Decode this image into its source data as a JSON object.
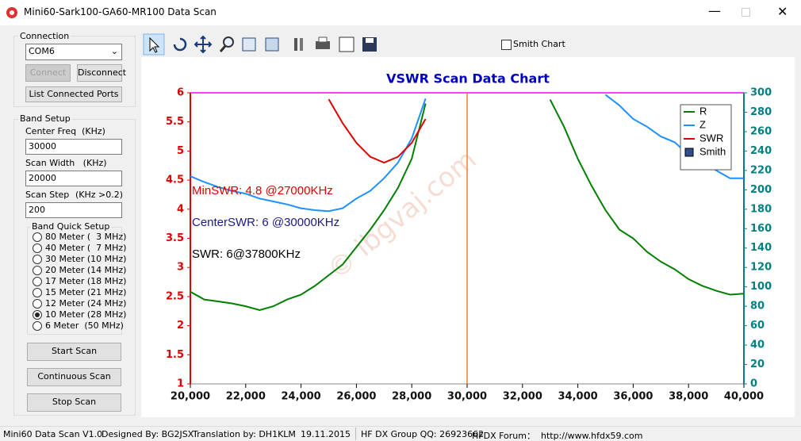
{
  "window": {
    "title": "Mini60-Sark100-GA60-MR100 Data Scan"
  },
  "connection": {
    "label": "Connection",
    "port": "COM6",
    "connect": "Connect",
    "disconnect": "Disconnect",
    "list_ports": "List Connected Ports"
  },
  "band_setup": {
    "label": "Band Setup",
    "center_freq_label": "Center Freq  (KHz)",
    "center_freq": "30000",
    "scan_width_label": "Scan Width   (KHz)",
    "scan_width": "20000",
    "scan_step_label": "Scan Step",
    "scan_step_hint": "(KHz >0.2)",
    "scan_step": "200",
    "quick_label": "Band Quick Setup",
    "bands": [
      {
        "label": "80 Meter (  3 MHz)",
        "checked": false
      },
      {
        "label": "40 Meter (  7 MHz)",
        "checked": false
      },
      {
        "label": "30 Meter (10 MHz)",
        "checked": false
      },
      {
        "label": "20 Meter (14 MHz)",
        "checked": false
      },
      {
        "label": "17 Meter (18 MHz)",
        "checked": false
      },
      {
        "label": "15 Meter (21 MHz)",
        "checked": false
      },
      {
        "label": "12 Meter (24 MHz)",
        "checked": false
      },
      {
        "label": "10 Meter (28 MHz)",
        "checked": true
      },
      {
        "label": "6 Meter  (50 MHz)",
        "checked": false
      }
    ],
    "start": "Start Scan",
    "continuous": "Continuous Scan",
    "stop": "Stop Scan"
  },
  "toolbar": {
    "smith_chart": "Smith Chart"
  },
  "chart_data": {
    "type": "line",
    "title": "VSWR Scan Data Chart",
    "x": [
      20000,
      20500,
      21000,
      21500,
      22000,
      22500,
      23000,
      23500,
      24000,
      24500,
      25000,
      25500,
      26000,
      26500,
      27000,
      27500,
      28000,
      28500,
      29000,
      29500,
      30000,
      30500,
      31000,
      31500,
      32000,
      32500,
      33000,
      33500,
      34000,
      34500,
      35000,
      35500,
      36000,
      36500,
      37000,
      37500,
      38000,
      38500,
      39000,
      39500,
      40000
    ],
    "series": [
      {
        "name": "R",
        "color": "#008000",
        "axis": "y2",
        "values": [
          95,
          87,
          85,
          83,
          80,
          76,
          80,
          87,
          92,
          101,
          112,
          123,
          141,
          159,
          179,
          202,
          232,
          289,
          null,
          null,
          null,
          null,
          null,
          null,
          null,
          null,
          293,
          265,
          232,
          204,
          179,
          159,
          150,
          136,
          126,
          118,
          108,
          101,
          96,
          92,
          93
        ]
      },
      {
        "name": "Z",
        "color": "#1e90ff",
        "axis": "y2",
        "values": [
          214,
          208,
          203,
          199,
          196,
          191,
          188,
          185,
          181,
          179,
          178,
          181,
          191,
          199,
          212,
          228,
          253,
          294,
          null,
          null,
          null,
          null,
          null,
          null,
          null,
          null,
          null,
          null,
          null,
          null,
          298,
          287,
          273,
          265,
          255,
          249,
          236,
          228,
          220,
          212,
          212
        ]
      },
      {
        "name": "SWR",
        "color": "#e00000",
        "values": [
          null,
          null,
          null,
          null,
          null,
          null,
          null,
          null,
          null,
          null,
          5.89,
          5.48,
          5.14,
          4.9,
          4.8,
          4.9,
          5.14,
          5.55,
          null,
          null,
          null,
          null,
          null,
          null,
          null,
          null,
          null,
          null,
          null,
          null,
          null,
          null,
          null,
          null,
          null,
          null,
          null,
          null,
          null,
          null,
          null
        ]
      },
      {
        "name": "Smith",
        "color": "#2f4f8f",
        "marker": "square",
        "values": [
          null,
          null,
          null,
          null,
          null,
          null,
          null,
          null,
          null,
          null,
          null,
          null,
          null,
          null,
          null,
          null,
          null,
          null,
          null,
          null,
          null,
          null,
          null,
          null,
          null,
          null,
          null,
          null,
          null,
          null,
          null,
          null,
          null,
          null,
          null,
          null,
          null,
          null,
          null,
          null,
          null
        ]
      }
    ],
    "xlim": [
      20000,
      40000
    ],
    "xticks": [
      {
        "value": 20000,
        "label": "20,000"
      },
      {
        "value": 22000,
        "label": "22,000"
      },
      {
        "value": 24000,
        "label": "24,000"
      },
      {
        "value": 26000,
        "label": "26,000"
      },
      {
        "value": 28000,
        "label": "28,000"
      },
      {
        "value": 30000,
        "label": "30,000"
      },
      {
        "value": 32000,
        "label": "32,000"
      },
      {
        "value": 34000,
        "label": "34,000"
      },
      {
        "value": 36000,
        "label": "36,000"
      },
      {
        "value": 38000,
        "label": "38,000"
      },
      {
        "value": 40000,
        "label": "40,000"
      }
    ],
    "ylim": [
      1,
      6
    ],
    "yticks": [
      1,
      1.5,
      2,
      2.5,
      3,
      3.5,
      4,
      4.5,
      5,
      5.5,
      6
    ],
    "y2lim": [
      0,
      300
    ],
    "y2ticks": [
      0,
      20,
      40,
      60,
      80,
      100,
      120,
      140,
      160,
      180,
      200,
      220,
      240,
      260,
      280,
      300
    ],
    "vlines": [
      {
        "value": 30000,
        "color": "#ff7f27"
      }
    ],
    "annotations": [
      {
        "text": "MinSWR: 4.8 @27000KHz",
        "color": "#e00000"
      },
      {
        "text": "CenterSWR: 6 @30000KHz",
        "color": "#1a1a80"
      },
      {
        "text": "SWR: 6@37800KHz",
        "color": "#000000"
      }
    ],
    "watermark": "© ibgvaj.com",
    "legend": "top-right"
  },
  "status": [
    "Mini60 Data Scan V1.0",
    "Designed By: BG2JSX",
    "Translation by: DH1KLM",
    "19.11.2015",
    "HF DX Group QQ: 26923662",
    "HFDX Forum：  http://www.hfdx59.com"
  ]
}
